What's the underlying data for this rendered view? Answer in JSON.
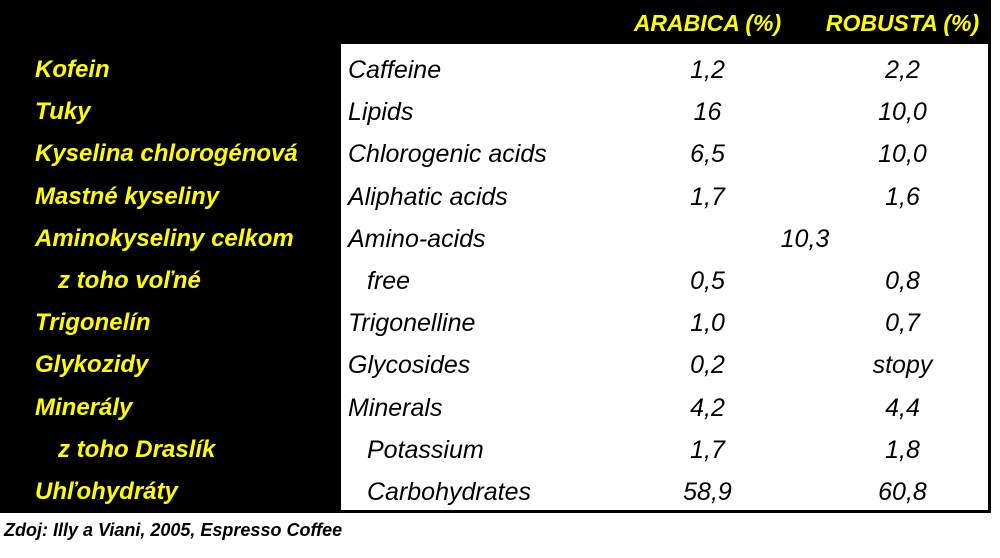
{
  "colors": {
    "accent_yellow": "#ffff00",
    "panel_black": "#000000",
    "body_white": "#ffffff",
    "text_black": "#000000"
  },
  "table": {
    "headers": {
      "arabica": "ARABICA (%)",
      "robusta": "ROBUSTA (%)"
    },
    "rows": [
      {
        "sk": "Kofein",
        "en": "Caffeine",
        "arabica": "1,2",
        "robusta": "2,2"
      },
      {
        "sk": "Tuky",
        "en": "Lipids",
        "arabica": "16",
        "robusta": "10,0"
      },
      {
        "sk": "Kyselina chlorogénová",
        "en": "Chlorogenic acids",
        "arabica": "6,5",
        "robusta": "10,0"
      },
      {
        "sk": "Mastné kyseliny",
        "en": "Aliphatic acids",
        "arabica": "1,7",
        "robusta": "1,6"
      },
      {
        "sk": "Aminokyseliny celkom",
        "en": "Amino-acids",
        "span_value": "10,3"
      },
      {
        "sk": "z toho voľné",
        "en": "free",
        "arabica": "0,5",
        "robusta": "0,8",
        "sk_indent": true,
        "en_indent": true
      },
      {
        "sk": "Trigonelín",
        "en": "Trigonelline",
        "arabica": "1,0",
        "robusta": "0,7"
      },
      {
        "sk": "Glykozidy",
        "en": "Glycosides",
        "arabica": "0,2",
        "robusta": "stopy"
      },
      {
        "sk": "Minerály",
        "en": "Minerals",
        "arabica": "4,2",
        "robusta": "4,4"
      },
      {
        "sk": "z toho Draslík",
        "en": "Potassium",
        "arabica": "1,7",
        "robusta": "1,8",
        "sk_indent": true,
        "en_indent": true
      },
      {
        "sk": "Uhľohydráty",
        "en": "Carbohydrates",
        "arabica": "58,9",
        "robusta": "60,8",
        "en_indent": true
      }
    ]
  },
  "footer": {
    "source": "Zdoj: Illy a Viani, 2005, Espresso Coffee"
  }
}
